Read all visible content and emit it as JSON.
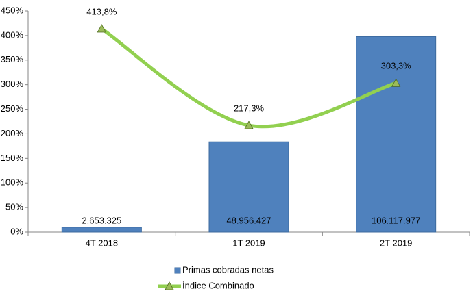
{
  "chart_data": {
    "type": "bar_line",
    "categories": [
      "4T 2018",
      "1T 2019",
      "2T 2019"
    ],
    "series": [
      {
        "name": "Primas cobradas netas",
        "type": "bar",
        "axis": "y2",
        "color": "#4f81bd",
        "values": [
          2653325,
          48956427,
          106117977
        ],
        "value_labels": [
          "2.653.325",
          "48.956.427",
          "106.117.977"
        ]
      },
      {
        "name": "Índice Combinado",
        "type": "line",
        "color": "#92d050",
        "marker_color": "#9bbb59",
        "values": [
          413.8,
          217.3,
          303.3
        ],
        "value_labels": [
          "413,8%",
          "217,3%",
          "303,3%"
        ]
      }
    ],
    "ylim": [
      0,
      450
    ],
    "yticks": [
      {
        "value": 0,
        "label": "0%"
      },
      {
        "value": 50,
        "label": "50%"
      },
      {
        "value": 100,
        "label": "100%"
      },
      {
        "value": 150,
        "label": "150%"
      },
      {
        "value": 200,
        "label": "200%"
      },
      {
        "value": 250,
        "label": "250%"
      },
      {
        "value": 300,
        "label": "300%"
      },
      {
        "value": 350,
        "label": "350%"
      },
      {
        "value": 400,
        "label": "400%"
      },
      {
        "value": 450,
        "label": "450%"
      }
    ],
    "y2lim": [
      0,
      120000000
    ],
    "legend": "bottom"
  }
}
